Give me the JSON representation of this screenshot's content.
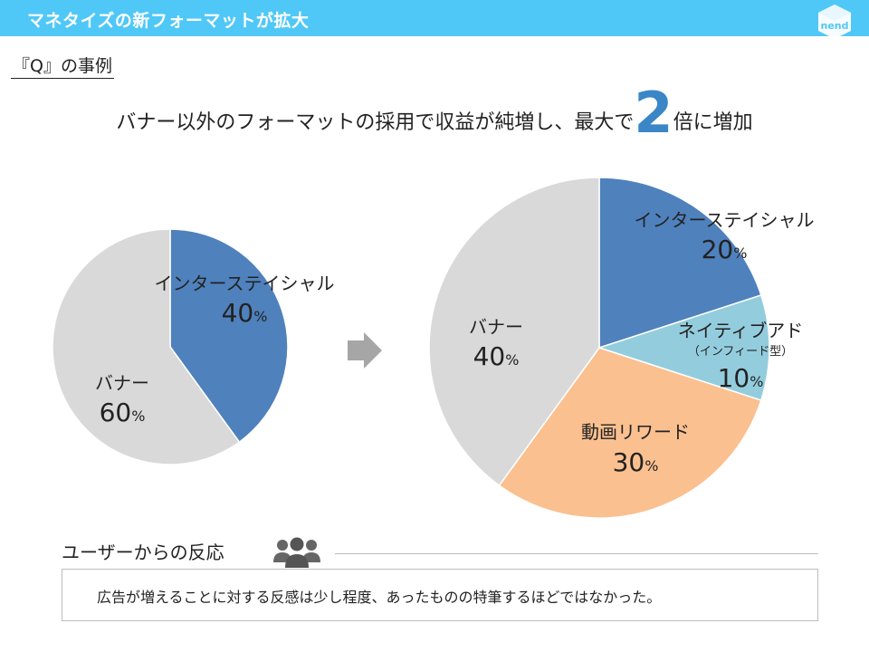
{
  "header": {
    "title": "マネタイズの新フォーマットが拡大",
    "logo_text": "nend"
  },
  "subtitle": "『Q』の事例",
  "headline": {
    "before": "バナー以外のフォーマットの採用で収益が純増し、最大で",
    "number": "2",
    "after": "倍に増加"
  },
  "chart_data": [
    {
      "type": "pie",
      "title": "",
      "slices": [
        {
          "label": "インターステイシャル",
          "value": 40,
          "color": "#4f81bd"
        },
        {
          "label": "バナー",
          "value": 60,
          "color": "#d9d9d9"
        }
      ]
    },
    {
      "type": "pie",
      "title": "",
      "slices": [
        {
          "label": "インターステイシャル",
          "value": 20,
          "color": "#4f81bd"
        },
        {
          "label": "ネイティブアド",
          "sublabel": "（インフィード型）",
          "value": 10,
          "color": "#93cddd"
        },
        {
          "label": "動画リワード",
          "value": 30,
          "color": "#fac090"
        },
        {
          "label": "バナー",
          "value": 40,
          "color": "#d9d9d9"
        }
      ]
    }
  ],
  "percent_sign": "%",
  "feedback": {
    "title": "ユーザーからの反応",
    "icon": "people-group-icon",
    "text": "広告が増えることに対する反感は少し程度、あったものの特筆するほどではなかった。"
  }
}
